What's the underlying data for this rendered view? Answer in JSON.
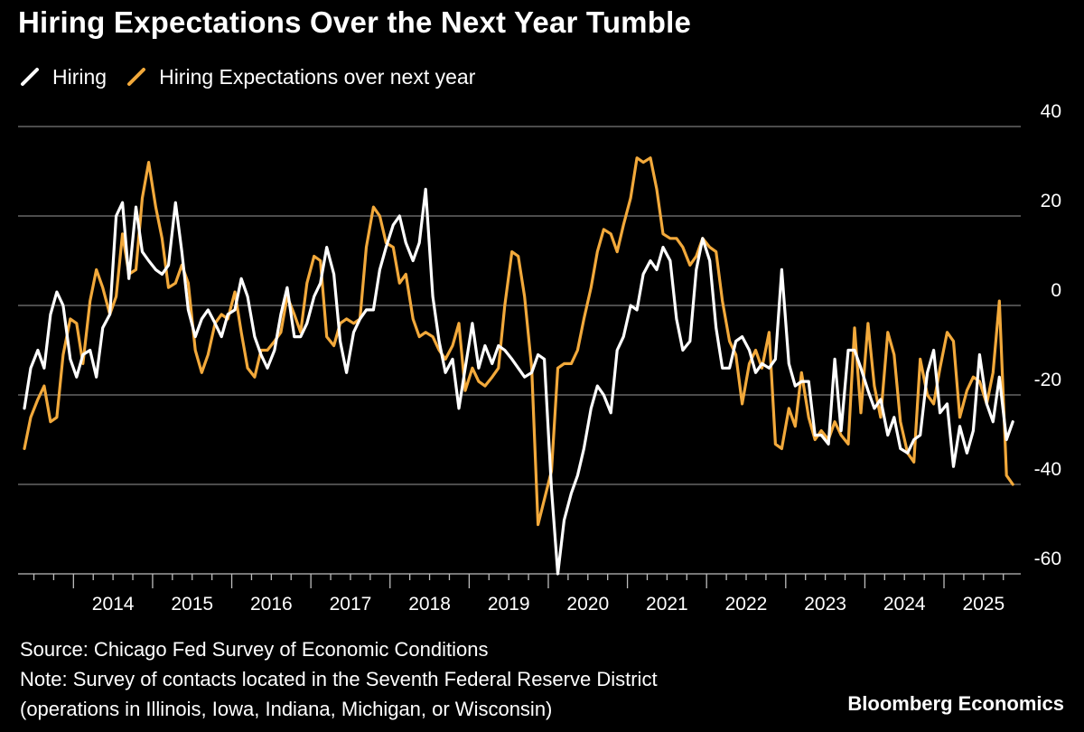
{
  "title": "Hiring Expectations Over the Next Year Tumble",
  "legend": [
    {
      "label": "Hiring",
      "color": "#ffffff"
    },
    {
      "label": "Hiring Expectations over next year",
      "color": "#f2a93b"
    }
  ],
  "footer": {
    "source": "Source: Chicago Fed Survey of Economic Conditions",
    "note_line1": "Note: Survey of contacts located in the Seventh Federal Reserve District",
    "note_line2": "(operations in Illinois, Iowa, Indiana, Michigan, or Wisconsin)",
    "brand": "Bloomberg Economics"
  },
  "chart_data": {
    "type": "line",
    "title": "Hiring Expectations Over the Next Year Tumble",
    "x_tick_labels": [
      "2014",
      "2015",
      "2016",
      "2017",
      "2018",
      "2019",
      "2020",
      "2021",
      "2022",
      "2023",
      "2024",
      "2025"
    ],
    "y_tick_labels": [
      "40",
      "20",
      "0",
      "-20",
      "-40",
      "-60"
    ],
    "ylim": [
      -60,
      40
    ],
    "xlim": [
      2013.3,
      2025.97
    ],
    "y_axis_position": "right",
    "grid": true,
    "background": "#000000",
    "series": [
      {
        "name": "Hiring",
        "color": "#ffffff",
        "points": [
          [
            2013.38,
            -23
          ],
          [
            2013.46,
            -14
          ],
          [
            2013.55,
            -10
          ],
          [
            2013.63,
            -14
          ],
          [
            2013.71,
            -2
          ],
          [
            2013.79,
            3
          ],
          [
            2013.87,
            0
          ],
          [
            2013.96,
            -12
          ],
          [
            2014.04,
            -16
          ],
          [
            2014.12,
            -11
          ],
          [
            2014.21,
            -10
          ],
          [
            2014.29,
            -16
          ],
          [
            2014.37,
            -5
          ],
          [
            2014.46,
            -2
          ],
          [
            2014.54,
            20
          ],
          [
            2014.62,
            23
          ],
          [
            2014.7,
            6
          ],
          [
            2014.79,
            22
          ],
          [
            2014.87,
            12
          ],
          [
            2014.95,
            10
          ],
          [
            2015.04,
            8
          ],
          [
            2015.12,
            7
          ],
          [
            2015.2,
            9
          ],
          [
            2015.29,
            23
          ],
          [
            2015.37,
            12
          ],
          [
            2015.45,
            -1
          ],
          [
            2015.54,
            -7
          ],
          [
            2015.62,
            -3
          ],
          [
            2015.7,
            -1
          ],
          [
            2015.79,
            -4
          ],
          [
            2015.87,
            -7
          ],
          [
            2015.95,
            -2
          ],
          [
            2016.04,
            -1
          ],
          [
            2016.12,
            6
          ],
          [
            2016.2,
            2
          ],
          [
            2016.29,
            -7
          ],
          [
            2016.37,
            -11
          ],
          [
            2016.45,
            -14
          ],
          [
            2016.54,
            -10
          ],
          [
            2016.62,
            -2
          ],
          [
            2016.7,
            4
          ],
          [
            2016.79,
            -7
          ],
          [
            2016.87,
            -7
          ],
          [
            2016.95,
            -4
          ],
          [
            2017.04,
            2
          ],
          [
            2017.12,
            5
          ],
          [
            2017.2,
            13
          ],
          [
            2017.29,
            7
          ],
          [
            2017.37,
            -8
          ],
          [
            2017.45,
            -15
          ],
          [
            2017.54,
            -6
          ],
          [
            2017.62,
            -3
          ],
          [
            2017.7,
            -1
          ],
          [
            2017.79,
            -1
          ],
          [
            2017.87,
            8
          ],
          [
            2017.95,
            13
          ],
          [
            2018.04,
            18
          ],
          [
            2018.12,
            20
          ],
          [
            2018.2,
            14
          ],
          [
            2018.29,
            10
          ],
          [
            2018.37,
            14
          ],
          [
            2018.45,
            26
          ],
          [
            2018.54,
            2
          ],
          [
            2018.62,
            -8
          ],
          [
            2018.7,
            -15
          ],
          [
            2018.79,
            -12
          ],
          [
            2018.87,
            -23
          ],
          [
            2018.95,
            -14
          ],
          [
            2019.04,
            -4
          ],
          [
            2019.12,
            -14
          ],
          [
            2019.2,
            -9
          ],
          [
            2019.29,
            -13
          ],
          [
            2019.37,
            -9
          ],
          [
            2019.45,
            -10
          ],
          [
            2019.54,
            -12
          ],
          [
            2019.62,
            -14
          ],
          [
            2019.7,
            -16
          ],
          [
            2019.79,
            -15
          ],
          [
            2019.87,
            -11
          ],
          [
            2019.95,
            -12
          ],
          [
            2020.04,
            -41
          ],
          [
            2020.12,
            -60
          ],
          [
            2020.2,
            -48
          ],
          [
            2020.29,
            -42
          ],
          [
            2020.37,
            -38
          ],
          [
            2020.45,
            -32
          ],
          [
            2020.54,
            -23
          ],
          [
            2020.62,
            -18
          ],
          [
            2020.7,
            -20
          ],
          [
            2020.79,
            -24
          ],
          [
            2020.87,
            -10
          ],
          [
            2020.95,
            -7
          ],
          [
            2021.04,
            0
          ],
          [
            2021.12,
            -1
          ],
          [
            2021.2,
            7
          ],
          [
            2021.29,
            10
          ],
          [
            2021.37,
            8
          ],
          [
            2021.45,
            13
          ],
          [
            2021.54,
            10
          ],
          [
            2021.62,
            -3
          ],
          [
            2021.7,
            -10
          ],
          [
            2021.79,
            -8
          ],
          [
            2021.87,
            8
          ],
          [
            2021.95,
            15
          ],
          [
            2022.04,
            10
          ],
          [
            2022.12,
            -5
          ],
          [
            2022.2,
            -14
          ],
          [
            2022.29,
            -14
          ],
          [
            2022.37,
            -8
          ],
          [
            2022.45,
            -7
          ],
          [
            2022.54,
            -10
          ],
          [
            2022.62,
            -15
          ],
          [
            2022.7,
            -13
          ],
          [
            2022.79,
            -14
          ],
          [
            2022.87,
            -12
          ],
          [
            2022.95,
            8
          ],
          [
            2023.04,
            -13
          ],
          [
            2023.12,
            -18
          ],
          [
            2023.2,
            -17
          ],
          [
            2023.29,
            -17
          ],
          [
            2023.37,
            -29
          ],
          [
            2023.45,
            -29
          ],
          [
            2023.54,
            -31
          ],
          [
            2023.62,
            -12
          ],
          [
            2023.7,
            -28
          ],
          [
            2023.79,
            -10
          ],
          [
            2023.87,
            -10
          ],
          [
            2023.95,
            -14
          ],
          [
            2024.04,
            -19
          ],
          [
            2024.12,
            -23
          ],
          [
            2024.2,
            -21
          ],
          [
            2024.29,
            -29
          ],
          [
            2024.37,
            -25
          ],
          [
            2024.45,
            -32
          ],
          [
            2024.54,
            -33
          ],
          [
            2024.62,
            -30
          ],
          [
            2024.7,
            -29
          ],
          [
            2024.79,
            -15
          ],
          [
            2024.87,
            -10
          ],
          [
            2024.95,
            -24
          ],
          [
            2025.04,
            -22
          ],
          [
            2025.12,
            -36
          ],
          [
            2025.2,
            -27
          ],
          [
            2025.29,
            -33
          ],
          [
            2025.37,
            -28
          ],
          [
            2025.45,
            -11
          ],
          [
            2025.54,
            -22
          ],
          [
            2025.62,
            -26
          ],
          [
            2025.7,
            -16
          ],
          [
            2025.79,
            -30
          ],
          [
            2025.87,
            -26
          ]
        ]
      },
      {
        "name": "Hiring Expectations over next year",
        "color": "#f2a93b",
        "points": [
          [
            2013.38,
            -32
          ],
          [
            2013.46,
            -25
          ],
          [
            2013.55,
            -21
          ],
          [
            2013.63,
            -18
          ],
          [
            2013.71,
            -26
          ],
          [
            2013.79,
            -25
          ],
          [
            2013.87,
            -11
          ],
          [
            2013.96,
            -3
          ],
          [
            2014.04,
            -4
          ],
          [
            2014.12,
            -13
          ],
          [
            2014.21,
            1
          ],
          [
            2014.29,
            8
          ],
          [
            2014.37,
            4
          ],
          [
            2014.46,
            -2
          ],
          [
            2014.54,
            2
          ],
          [
            2014.62,
            16
          ],
          [
            2014.7,
            7
          ],
          [
            2014.79,
            8
          ],
          [
            2014.87,
            24
          ],
          [
            2014.95,
            32
          ],
          [
            2015.04,
            22
          ],
          [
            2015.12,
            15
          ],
          [
            2015.2,
            4
          ],
          [
            2015.29,
            5
          ],
          [
            2015.37,
            9
          ],
          [
            2015.45,
            5
          ],
          [
            2015.54,
            -10
          ],
          [
            2015.62,
            -15
          ],
          [
            2015.7,
            -11
          ],
          [
            2015.79,
            -4
          ],
          [
            2015.87,
            -2
          ],
          [
            2015.95,
            -3
          ],
          [
            2016.04,
            3
          ],
          [
            2016.12,
            -6
          ],
          [
            2016.2,
            -14
          ],
          [
            2016.29,
            -16
          ],
          [
            2016.37,
            -10
          ],
          [
            2016.45,
            -10
          ],
          [
            2016.54,
            -8
          ],
          [
            2016.62,
            -6
          ],
          [
            2016.7,
            2
          ],
          [
            2016.79,
            -2
          ],
          [
            2016.87,
            -6
          ],
          [
            2016.95,
            5
          ],
          [
            2017.04,
            11
          ],
          [
            2017.12,
            10
          ],
          [
            2017.2,
            -7
          ],
          [
            2017.29,
            -9
          ],
          [
            2017.37,
            -4
          ],
          [
            2017.45,
            -3
          ],
          [
            2017.54,
            -4
          ],
          [
            2017.62,
            -3
          ],
          [
            2017.7,
            13
          ],
          [
            2017.79,
            22
          ],
          [
            2017.87,
            20
          ],
          [
            2017.95,
            14
          ],
          [
            2018.04,
            13
          ],
          [
            2018.12,
            5
          ],
          [
            2018.2,
            7
          ],
          [
            2018.29,
            -3
          ],
          [
            2018.37,
            -7
          ],
          [
            2018.45,
            -6
          ],
          [
            2018.54,
            -7
          ],
          [
            2018.62,
            -10
          ],
          [
            2018.7,
            -12
          ],
          [
            2018.79,
            -9
          ],
          [
            2018.87,
            -4
          ],
          [
            2018.95,
            -19
          ],
          [
            2019.04,
            -14
          ],
          [
            2019.12,
            -17
          ],
          [
            2019.2,
            -18
          ],
          [
            2019.29,
            -16
          ],
          [
            2019.37,
            -14
          ],
          [
            2019.45,
            0
          ],
          [
            2019.54,
            12
          ],
          [
            2019.62,
            11
          ],
          [
            2019.7,
            2
          ],
          [
            2019.79,
            -14
          ],
          [
            2019.87,
            -49
          ],
          [
            2020.04,
            -37
          ],
          [
            2020.12,
            -14
          ],
          [
            2020.2,
            -13
          ],
          [
            2020.29,
            -13
          ],
          [
            2020.37,
            -10
          ],
          [
            2020.45,
            -3
          ],
          [
            2020.54,
            4
          ],
          [
            2020.62,
            12
          ],
          [
            2020.7,
            17
          ],
          [
            2020.79,
            16
          ],
          [
            2020.87,
            12
          ],
          [
            2020.95,
            18
          ],
          [
            2021.04,
            24
          ],
          [
            2021.12,
            33
          ],
          [
            2021.2,
            32
          ],
          [
            2021.29,
            33
          ],
          [
            2021.37,
            26
          ],
          [
            2021.45,
            16
          ],
          [
            2021.54,
            15
          ],
          [
            2021.62,
            15
          ],
          [
            2021.7,
            13
          ],
          [
            2021.79,
            9
          ],
          [
            2021.87,
            11
          ],
          [
            2021.95,
            15
          ],
          [
            2022.04,
            13
          ],
          [
            2022.12,
            12
          ],
          [
            2022.2,
            1
          ],
          [
            2022.29,
            -8
          ],
          [
            2022.37,
            -11
          ],
          [
            2022.45,
            -22
          ],
          [
            2022.54,
            -13
          ],
          [
            2022.62,
            -10
          ],
          [
            2022.7,
            -14
          ],
          [
            2022.79,
            -6
          ],
          [
            2022.87,
            -31
          ],
          [
            2022.95,
            -32
          ],
          [
            2023.04,
            -23
          ],
          [
            2023.12,
            -27
          ],
          [
            2023.2,
            -15
          ],
          [
            2023.29,
            -25
          ],
          [
            2023.37,
            -30
          ],
          [
            2023.45,
            -28
          ],
          [
            2023.54,
            -30
          ],
          [
            2023.62,
            -26
          ],
          [
            2023.7,
            -29
          ],
          [
            2023.79,
            -31
          ],
          [
            2023.87,
            -5
          ],
          [
            2023.95,
            -24
          ],
          [
            2024.04,
            -4
          ],
          [
            2024.12,
            -18
          ],
          [
            2024.2,
            -25
          ],
          [
            2024.29,
            -6
          ],
          [
            2024.37,
            -11
          ],
          [
            2024.45,
            -26
          ],
          [
            2024.54,
            -33
          ],
          [
            2024.62,
            -35
          ],
          [
            2024.7,
            -12
          ],
          [
            2024.79,
            -20
          ],
          [
            2024.87,
            -22
          ],
          [
            2024.95,
            -14
          ],
          [
            2025.04,
            -6
          ],
          [
            2025.12,
            -8
          ],
          [
            2025.2,
            -25
          ],
          [
            2025.29,
            -19
          ],
          [
            2025.37,
            -16
          ],
          [
            2025.45,
            -17
          ],
          [
            2025.54,
            -22
          ],
          [
            2025.62,
            -15
          ],
          [
            2025.7,
            1
          ],
          [
            2025.79,
            -38
          ],
          [
            2025.87,
            -40
          ]
        ]
      }
    ]
  }
}
